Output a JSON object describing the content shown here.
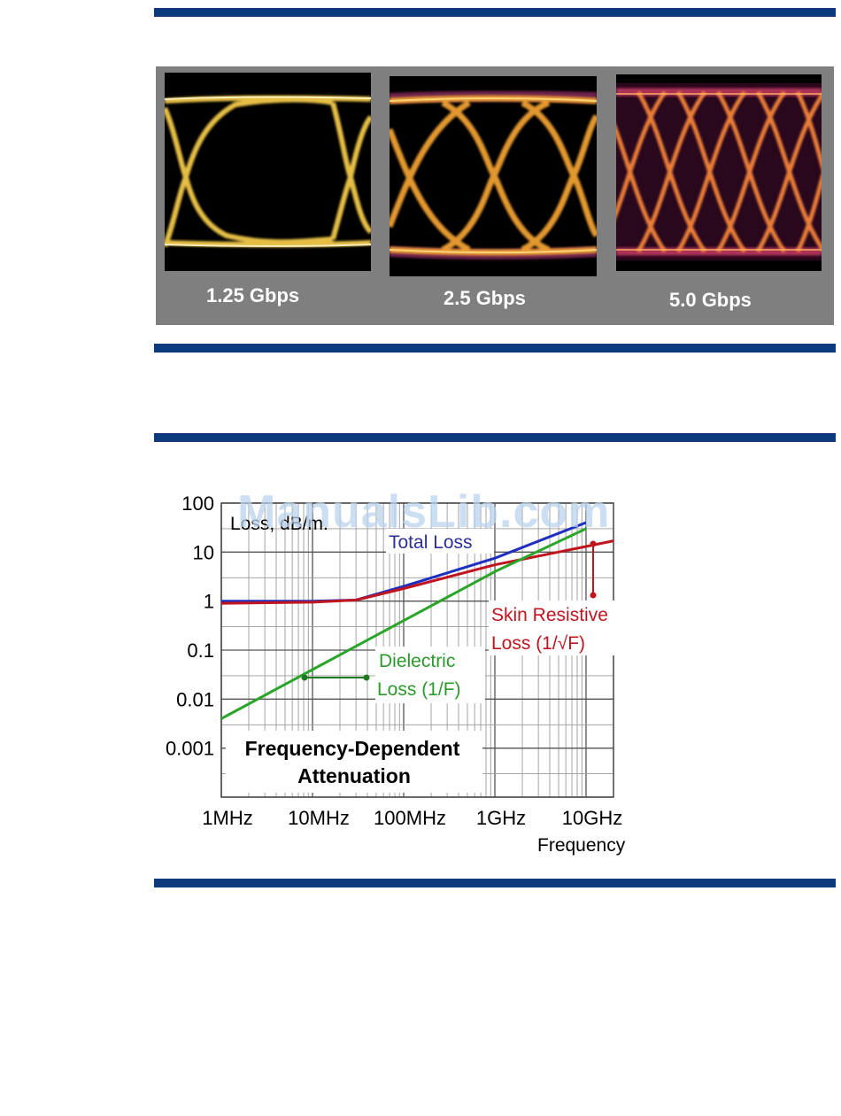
{
  "eye_diagrams": [
    {
      "label": "1.25 Gbps"
    },
    {
      "label": "2.5 Gbps"
    },
    {
      "label": "5.0 Gbps"
    }
  ],
  "watermark": "ManualsLib.com",
  "chart_data": {
    "type": "line",
    "title": "Frequency-Dependent Attenuation",
    "ylabel": "Loss, dB/m.",
    "xlabel": "Frequency",
    "x_scale": "log",
    "y_scale": "log",
    "x_ticks": [
      "1MHz",
      "10MHz",
      "100MHz",
      "1GHz",
      "10GHz"
    ],
    "y_ticks": [
      "100",
      "10",
      "1",
      "0.1",
      "0.01",
      "0.001"
    ],
    "xlim": [
      "1MHz",
      "20GHz"
    ],
    "ylim": [
      0.0001,
      100
    ],
    "grid": true,
    "series": [
      {
        "name": "Total Loss",
        "color": "#1f2fbf",
        "points": [
          [
            "1MHz",
            1.0
          ],
          [
            "10MHz",
            1.0
          ],
          [
            "30MHz",
            1.05
          ],
          [
            "100MHz",
            2.0
          ],
          [
            "1GHz",
            7.5
          ],
          [
            "10GHz",
            40
          ]
        ]
      },
      {
        "name": "Skin Resistive Loss (1/√F)",
        "color": "#c0141e",
        "points": [
          [
            "1MHz",
            0.9
          ],
          [
            "10MHz",
            0.95
          ],
          [
            "30MHz",
            1.05
          ],
          [
            "100MHz",
            1.8
          ],
          [
            "1GHz",
            5.5
          ],
          [
            "10GHz",
            13
          ],
          [
            "20GHz",
            17
          ]
        ]
      },
      {
        "name": "Dielectric Loss (1/F)",
        "color": "#2aa52a",
        "points": [
          [
            "1MHz",
            0.004
          ],
          [
            "10MHz",
            0.04
          ],
          [
            "100MHz",
            0.4
          ],
          [
            "1GHz",
            4
          ],
          [
            "10GHz",
            30
          ]
        ]
      }
    ],
    "annotations": {
      "total_loss": "Total Loss",
      "skin_line1": "Skin Resistive",
      "skin_line2": "Loss (1/√F)",
      "dielectric_line1": "Dielectric",
      "dielectric_line2": "Loss (1/F)",
      "title_line1": "Frequency-Dependent",
      "title_line2": "Attenuation"
    }
  }
}
